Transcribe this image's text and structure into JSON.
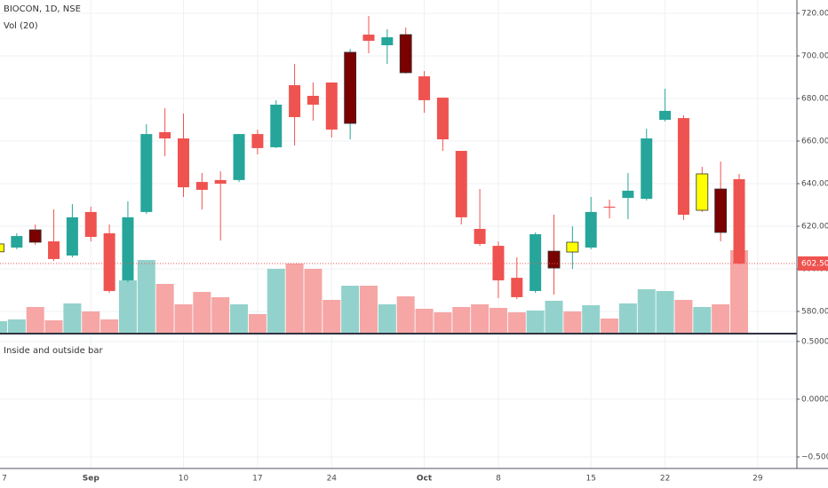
{
  "chart_data": [
    {
      "type": "candlestick",
      "title": "BIOCON, 1D, NSE",
      "indicator": "Vol (20)",
      "categories": [
        "7",
        null,
        null,
        null,
        null,
        "Sep",
        null,
        null,
        null,
        null,
        "10",
        null,
        null,
        null,
        "17",
        null,
        null,
        null,
        "24",
        null,
        null,
        null,
        null,
        "Oct",
        null,
        null,
        null,
        "8",
        null,
        null,
        null,
        null,
        "15",
        null,
        null,
        null,
        "22",
        null,
        null,
        null,
        null,
        "29",
        null
      ],
      "open": [
        608,
        610,
        618.3,
        612.9,
        606.25,
        626.7,
        616.7,
        594.6,
        626.7,
        664.2,
        661.25,
        640.8,
        641.7,
        641.7,
        663.3,
        657.1,
        686.25,
        681.25,
        687.5,
        668.3,
        710,
        705,
        710,
        690.4,
        680.4,
        655.4,
        618.75,
        610.8,
        595.8,
        589.6,
        608.3,
        607.9,
        610,
        629.2,
        633.3,
        632.9,
        670,
        670.8,
        644.6,
        637.5,
        642.1,
        null,
        null
      ],
      "high": [
        613.3,
        616.7,
        620.8,
        627.9,
        630.4,
        629.2,
        620.8,
        631.7,
        667.9,
        675.4,
        672.9,
        645,
        645.8,
        663.3,
        665.4,
        679.2,
        696.25,
        687.5,
        687.5,
        703.3,
        718.75,
        712.5,
        713.3,
        692.9,
        680.4,
        655.4,
        637.5,
        612.9,
        605.4,
        617.1,
        625.4,
        620,
        633.75,
        632.5,
        645,
        665.8,
        684.6,
        672.1,
        647.9,
        650.4,
        644.6,
        null,
        null
      ],
      "low": [
        606.3,
        609.2,
        611.3,
        603.75,
        605.4,
        612.9,
        588.75,
        593.75,
        625.8,
        652.9,
        633.75,
        627.9,
        613.3,
        640.8,
        653.75,
        656.7,
        657.9,
        669.6,
        661.7,
        660.8,
        701.25,
        696.25,
        691.7,
        673.3,
        655.4,
        620.8,
        610.8,
        586.25,
        585.8,
        588.75,
        587.9,
        600,
        609.2,
        623.75,
        623.3,
        632.1,
        669.2,
        622.9,
        626.7,
        612.9,
        602.1,
        null,
        null
      ],
      "close": [
        611.7,
        615.4,
        612.5,
        604.6,
        624.2,
        615,
        589.6,
        624.2,
        663.3,
        661.25,
        638.3,
        637.1,
        640,
        663.3,
        656.7,
        677.1,
        671.25,
        677.1,
        665.4,
        701.7,
        707.1,
        708.75,
        692.1,
        679.2,
        660.8,
        624.2,
        611.7,
        594.6,
        586.7,
        616.25,
        600.4,
        612.5,
        626.7,
        628.75,
        636.7,
        661.25,
        674.2,
        625.4,
        627.5,
        617.1,
        602.5,
        null,
        null
      ],
      "colors": [
        "#ffff00",
        "#26a69a",
        "#7b0000",
        "#ef5350",
        "#26a69a",
        "#ef5350",
        "#ef5350",
        "#26a69a",
        "#26a69a",
        "#ef5350",
        "#ef5350",
        "#ef5350",
        "#ef5350",
        "#26a69a",
        "#ef5350",
        "#26a69a",
        "#ef5350",
        "#ef5350",
        "#ef5350",
        "#7b0000",
        "#ef5350",
        "#26a69a",
        "#7b0000",
        "#ef5350",
        "#ef5350",
        "#ef5350",
        "#ef5350",
        "#ef5350",
        "#ef5350",
        "#26a69a",
        "#7b0000",
        "#ffff00",
        "#26a69a",
        "#ef5350",
        "#26a69a",
        "#26a69a",
        "#26a69a",
        "#ef5350",
        "#ffff00",
        "#7b0000",
        "#ef5350",
        null,
        null
      ],
      "volume": [
        13,
        15,
        29,
        14,
        33,
        24,
        15,
        59,
        82,
        55,
        32,
        46,
        40,
        32,
        21,
        72,
        78,
        72,
        37,
        53,
        53,
        32,
        41,
        27,
        23,
        29,
        32,
        28,
        23,
        25,
        36,
        24,
        31,
        16,
        33,
        49,
        47,
        37,
        29,
        32,
        93,
        null,
        null
      ],
      "volume_colors": [
        "#93d2cc",
        "#93d2cc",
        "#f5a6a5",
        "#f5a6a5",
        "#93d2cc",
        "#f5a6a5",
        "#f5a6a5",
        "#93d2cc",
        "#93d2cc",
        "#f5a6a5",
        "#f5a6a5",
        "#f5a6a5",
        "#f5a6a5",
        "#93d2cc",
        "#f5a6a5",
        "#93d2cc",
        "#f5a6a5",
        "#f5a6a5",
        "#f5a6a5",
        "#93d2cc",
        "#f5a6a5",
        "#93d2cc",
        "#f5a6a5",
        "#f5a6a5",
        "#f5a6a5",
        "#f5a6a5",
        "#f5a6a5",
        "#f5a6a5",
        "#f5a6a5",
        "#93d2cc",
        "#93d2cc",
        "#f5a6a5",
        "#93d2cc",
        "#f5a6a5",
        "#93d2cc",
        "#93d2cc",
        "#93d2cc",
        "#f5a6a5",
        "#93d2cc",
        "#f5a6a5",
        "#f5a6a5",
        null,
        null
      ],
      "up_color": "#26a69a",
      "down_color": "#ef5350",
      "ylim": [
        570,
        726.25
      ],
      "yticks": [
        {
          "value": 580,
          "label": "580.00"
        },
        {
          "value": 600,
          "label": "600.00"
        },
        {
          "value": 620,
          "label": "620.00"
        },
        {
          "value": 640,
          "label": "640.00"
        },
        {
          "value": 660,
          "label": "660.00"
        },
        {
          "value": 680,
          "label": "680.00"
        },
        {
          "value": 700,
          "label": "700.00"
        },
        {
          "value": 720,
          "label": "720.00"
        }
      ],
      "last_price": {
        "value": 602.5,
        "label": "602.50"
      },
      "last_price_color": "#ef5350",
      "grid": true
    },
    {
      "type": "indicator",
      "title": "Inside and outside bar",
      "ylim": [
        -0.6,
        0.56
      ],
      "yticks": [
        {
          "value": 0.5,
          "label": "0.5000"
        },
        {
          "value": 0,
          "label": "0.0000"
        },
        {
          "value": -0.5,
          "label": "−0.5000"
        }
      ],
      "grid": true
    }
  ]
}
